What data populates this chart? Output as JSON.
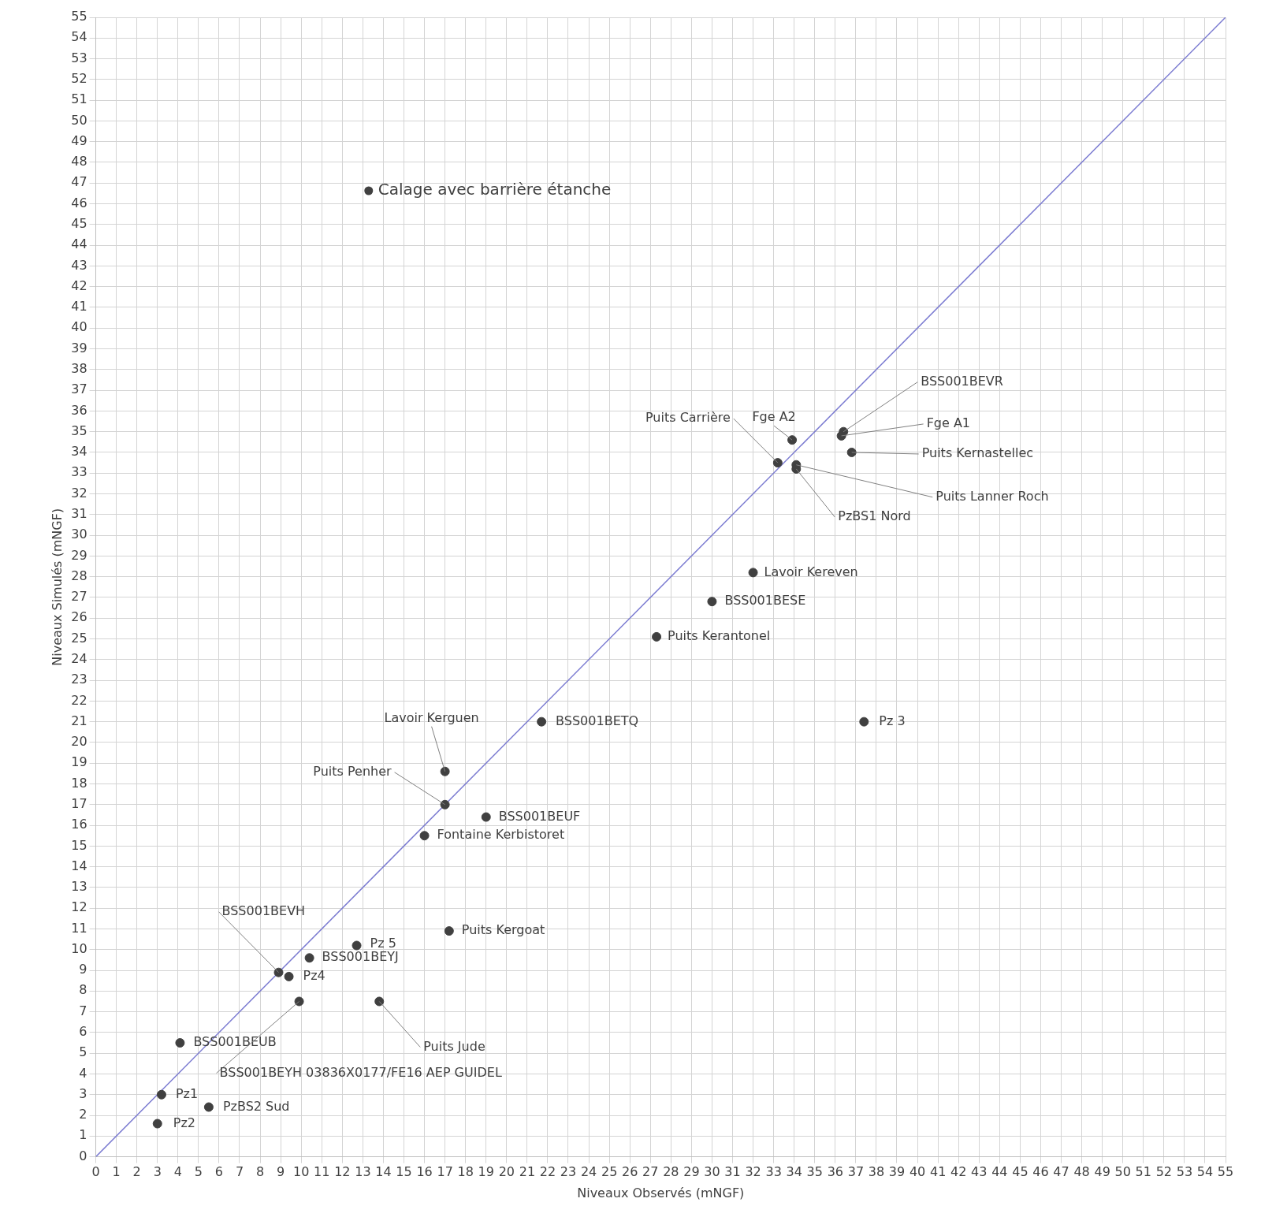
{
  "chart_data": {
    "type": "scatter",
    "xlabel": "Niveaux Observés (mNGF)",
    "ylabel": "Niveaux Simulés (mNGF)",
    "xlim": [
      0,
      55
    ],
    "ylim": [
      0,
      55
    ],
    "xticks": [
      0,
      1,
      2,
      3,
      4,
      5,
      6,
      7,
      8,
      9,
      10,
      11,
      12,
      13,
      14,
      15,
      16,
      17,
      18,
      19,
      20,
      21,
      22,
      23,
      24,
      25,
      26,
      27,
      28,
      29,
      30,
      31,
      32,
      33,
      34,
      35,
      36,
      37,
      38,
      39,
      40,
      41,
      42,
      43,
      44,
      45,
      46,
      47,
      48,
      49,
      50,
      51,
      52,
      53,
      54,
      55
    ],
    "yticks": [
      0,
      1,
      2,
      3,
      4,
      5,
      6,
      7,
      8,
      9,
      10,
      11,
      12,
      13,
      14,
      15,
      16,
      17,
      18,
      19,
      20,
      21,
      22,
      23,
      24,
      25,
      26,
      27,
      28,
      29,
      30,
      31,
      32,
      33,
      34,
      35,
      36,
      37,
      38,
      39,
      40,
      41,
      42,
      43,
      44,
      45,
      46,
      47,
      48,
      49,
      50,
      51,
      52,
      53,
      54,
      55
    ],
    "grid": true,
    "legend": "top left",
    "series": [
      {
        "name": "Calage avec barrière étanche",
        "color": "#404040",
        "marker": "circle",
        "x": [
          3.0,
          3.2,
          5.5,
          4.1,
          8.9,
          9.4,
          9.9,
          10.4,
          12.7,
          13.8,
          17.2,
          16.0,
          17.0,
          17.0,
          19.0,
          21.7,
          37.4,
          27.3,
          30.0,
          32.0,
          33.2,
          33.9,
          34.1,
          34.1,
          36.4,
          36.3,
          36.8
        ],
        "values": [
          1.6,
          3.0,
          2.4,
          5.5,
          8.9,
          8.7,
          7.5,
          9.6,
          10.2,
          7.5,
          10.9,
          15.5,
          17.0,
          18.6,
          16.4,
          21.0,
          21.0,
          25.1,
          26.8,
          28.2,
          33.5,
          34.6,
          33.4,
          33.2,
          35.0,
          34.8,
          34.0
        ]
      },
      {
        "type": "line",
        "color": "#7b7bd1",
        "marker": "none",
        "x": [
          0,
          55
        ],
        "values": [
          0,
          55
        ]
      }
    ],
    "annotations": [
      {
        "text": "Pz2",
        "x": 3.0,
        "y": 1.6
      },
      {
        "text": "Pz1",
        "x": 3.2,
        "y": 3.0
      },
      {
        "text": "PzBS2 Sud",
        "x": 5.5,
        "y": 2.4
      },
      {
        "text": "BSS001BEUB",
        "x": 4.1,
        "y": 5.5
      },
      {
        "text": "BSS001BEVH",
        "x": 8.9,
        "y": 8.9
      },
      {
        "text": "Pz4",
        "x": 9.4,
        "y": 8.7
      },
      {
        "text": "BSS001BEYH 03836X0177/FE16 AEP GUIDEL",
        "x": 9.9,
        "y": 7.5
      },
      {
        "text": "BSS001BEYJ",
        "x": 10.4,
        "y": 9.6
      },
      {
        "text": "Pz 5",
        "x": 12.7,
        "y": 10.2
      },
      {
        "text": "Puits Jude",
        "x": 13.8,
        "y": 7.5
      },
      {
        "text": "Puits Kergoat",
        "x": 17.2,
        "y": 10.9
      },
      {
        "text": "Fontaine Kerbistoret",
        "x": 16.0,
        "y": 15.5
      },
      {
        "text": "Puits Penher",
        "x": 17.0,
        "y": 17.0
      },
      {
        "text": "Lavoir Kerguen",
        "x": 17.0,
        "y": 18.6
      },
      {
        "text": "BSS001BEUF",
        "x": 19.0,
        "y": 16.4
      },
      {
        "text": "BSS001BETQ",
        "x": 21.7,
        "y": 21.0
      },
      {
        "text": "Pz 3",
        "x": 37.4,
        "y": 21.0
      },
      {
        "text": "Puits Kerantonel",
        "x": 27.3,
        "y": 25.1
      },
      {
        "text": "BSS001BESE",
        "x": 30.0,
        "y": 26.8
      },
      {
        "text": "Lavoir Kereven",
        "x": 32.0,
        "y": 28.2
      },
      {
        "text": "Puits Carrière",
        "x": 33.2,
        "y": 33.5
      },
      {
        "text": "Fge A2",
        "x": 33.9,
        "y": 34.6
      },
      {
        "text": "Puits Lanner Roch",
        "x": 34.1,
        "y": 33.4
      },
      {
        "text": "PzBS1 Nord",
        "x": 34.1,
        "y": 33.2
      },
      {
        "text": "BSS001BEVR",
        "x": 36.4,
        "y": 35.0
      },
      {
        "text": "Fge A1",
        "x": 36.3,
        "y": 34.8
      },
      {
        "text": "Puits Kernastellec",
        "x": 36.8,
        "y": 34.0
      }
    ]
  }
}
